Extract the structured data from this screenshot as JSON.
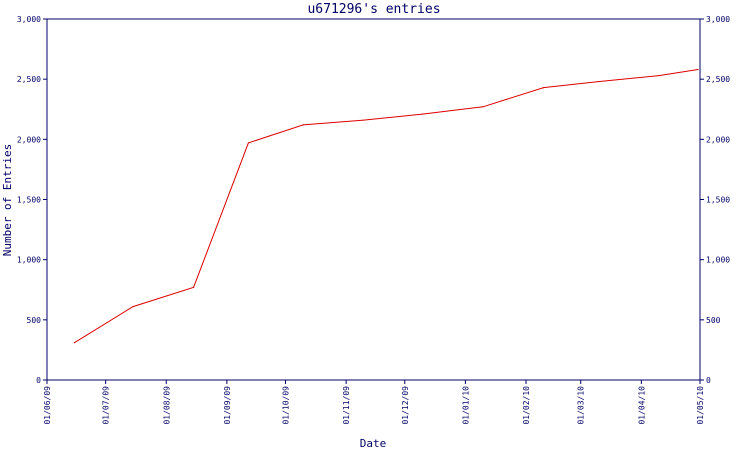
{
  "chart_data": {
    "type": "line",
    "title": "u671296's entries",
    "xlabel": "Date",
    "ylabel": "Number of Entries",
    "ylim": [
      0,
      3000
    ],
    "y_ticks": [
      "0",
      "500",
      "1,000",
      "1,500",
      "2,000",
      "2,500",
      "3,000"
    ],
    "x_ticks": [
      "01/06/09",
      "01/07/09",
      "01/08/09",
      "01/09/09",
      "01/10/09",
      "01/11/09",
      "01/12/09",
      "01/01/10",
      "01/02/10",
      "01/03/10",
      "01/04/10",
      "01/05/10"
    ],
    "xlim": [
      "2009-06-01",
      "2010-05-01"
    ],
    "grid": false,
    "colors": {
      "axis": "#000066",
      "line": "#dd0000"
    },
    "series": [
      {
        "name": "",
        "x": [
          "2009-06-15",
          "2009-07-15",
          "2009-08-15",
          "2009-09-12",
          "2009-10-10",
          "2009-11-10",
          "2009-12-10",
          "2010-01-10",
          "2010-02-10",
          "2010-03-10",
          "2010-04-10",
          "2010-04-30"
        ],
        "y": [
          310,
          610,
          770,
          1970,
          2120,
          2160,
          2210,
          2270,
          2430,
          2480,
          2530,
          2580
        ]
      }
    ]
  }
}
